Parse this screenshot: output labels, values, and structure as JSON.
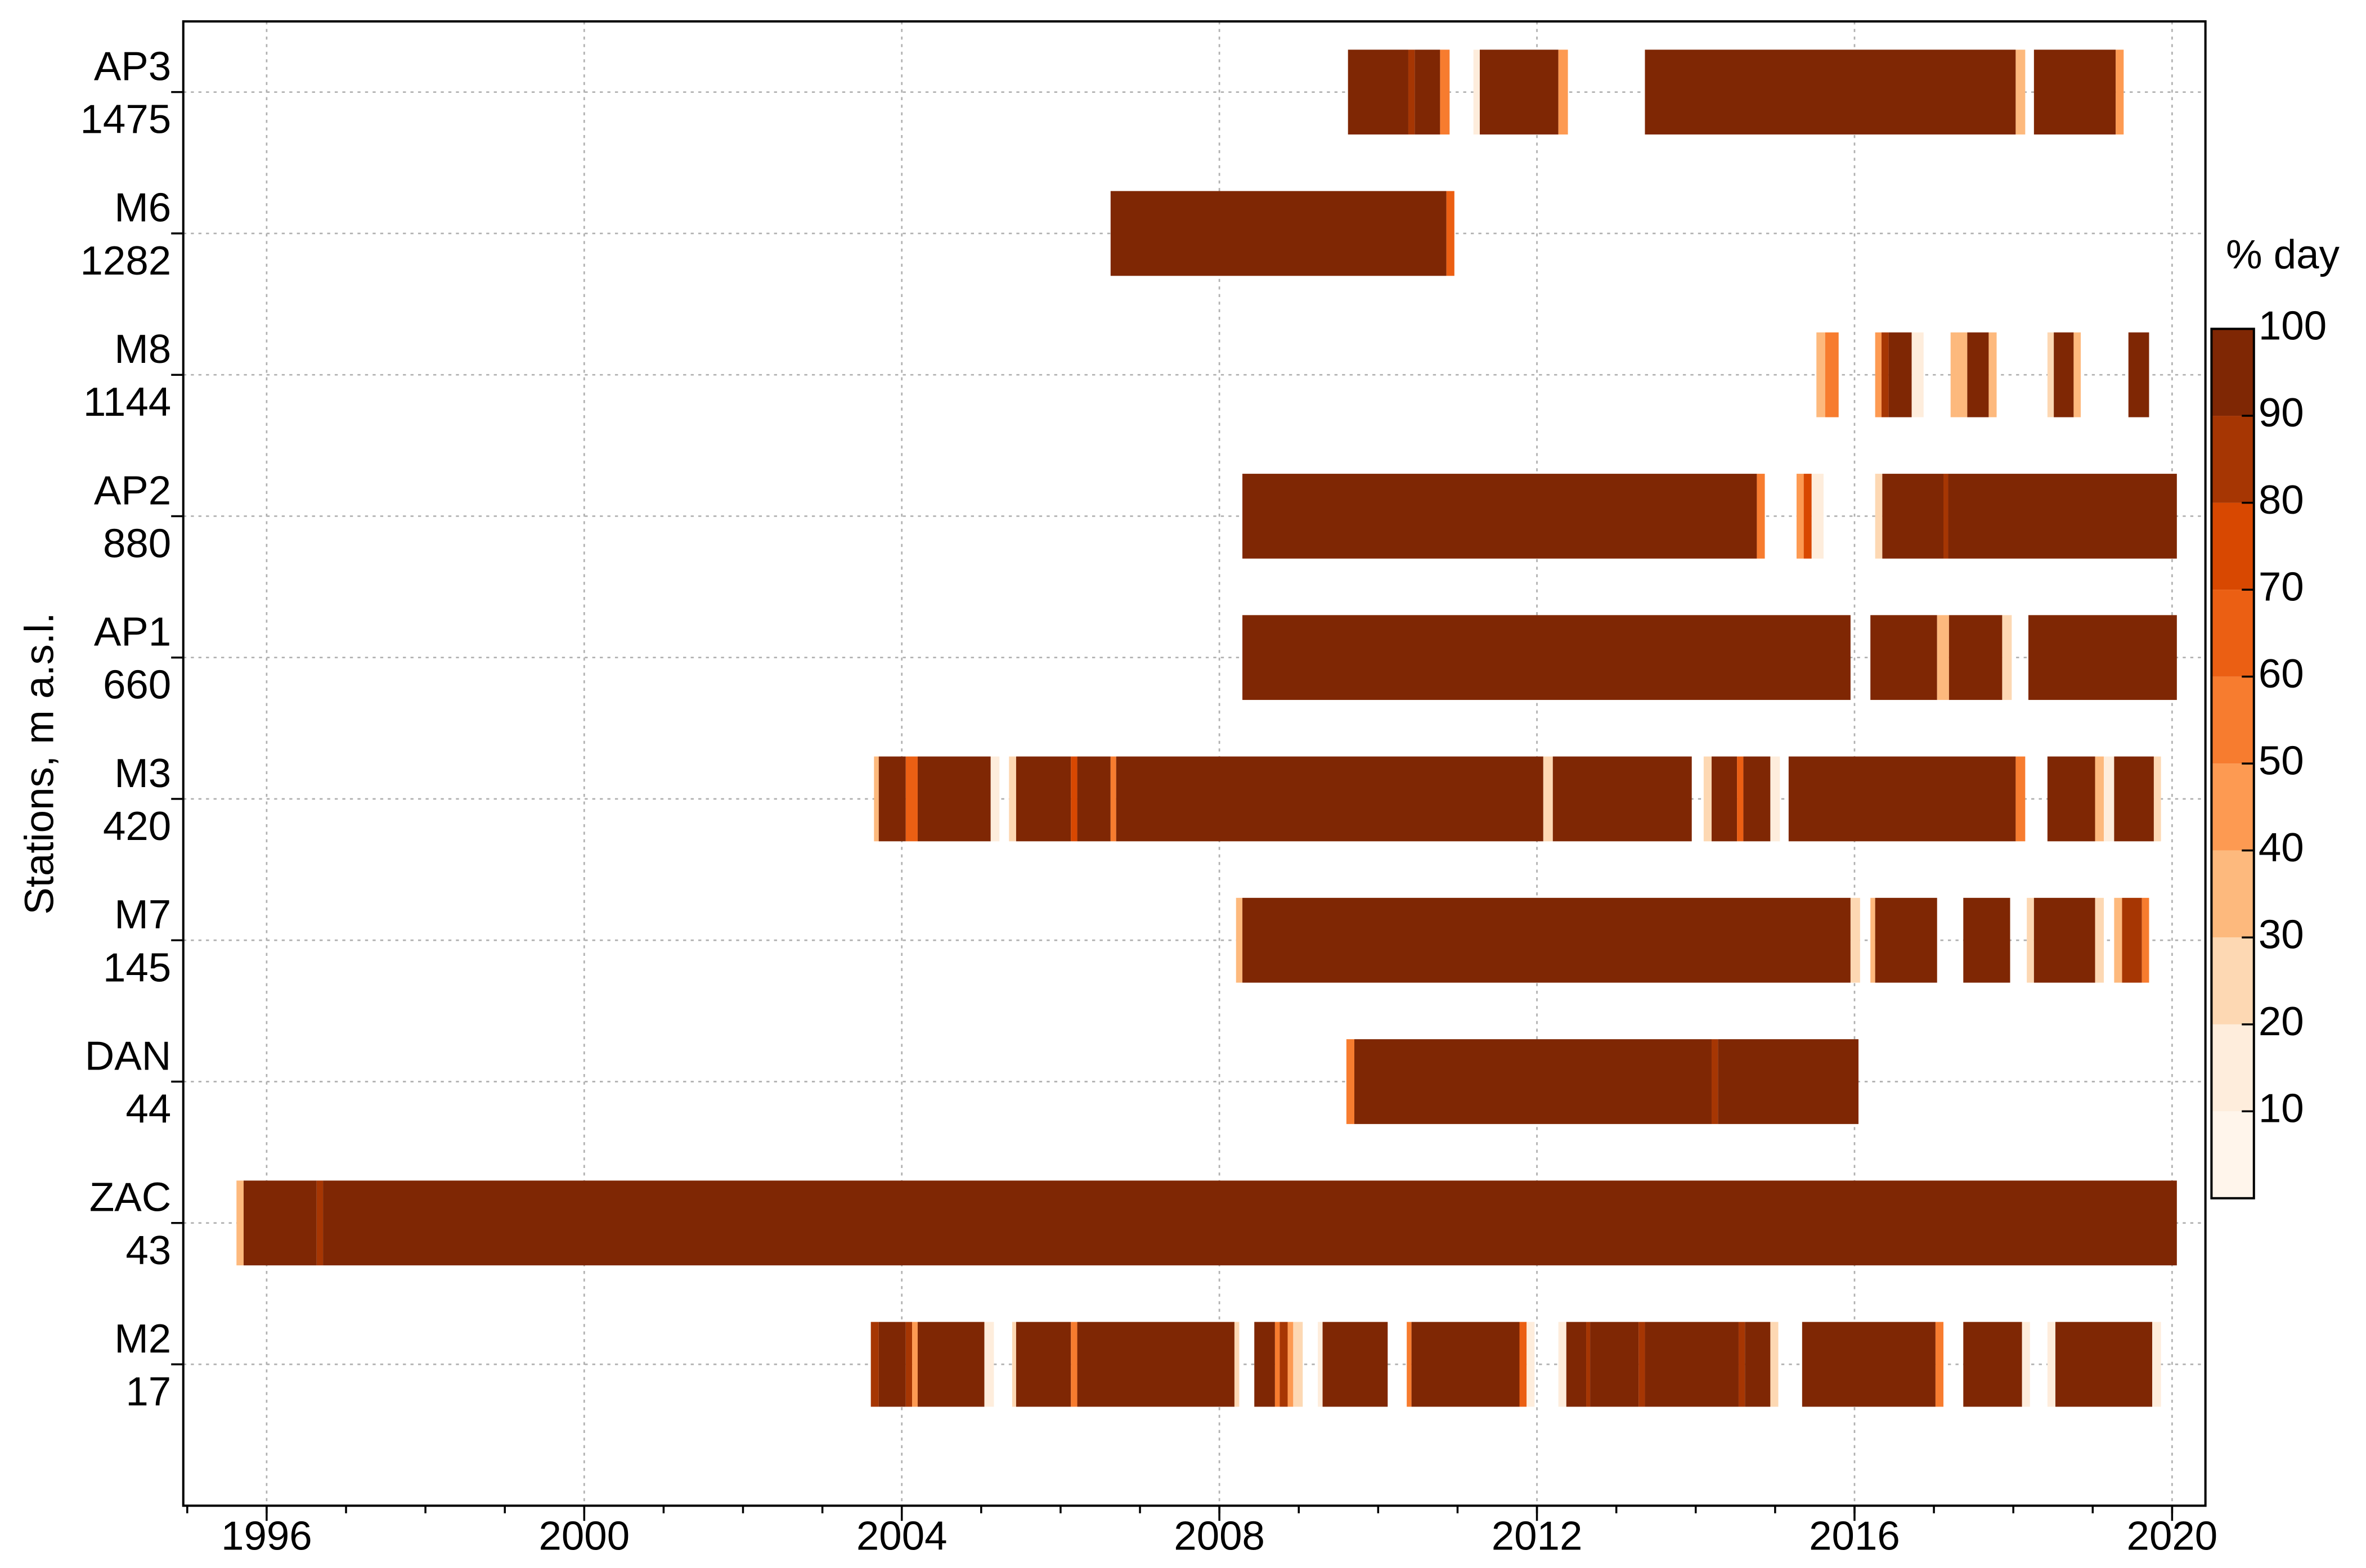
{
  "chart_data": {
    "type": "timeline",
    "ylabel": "Stations, m a.s.l.",
    "xlim": [
      1994.95,
      2020.42
    ],
    "xticks": [
      1996,
      2000,
      2004,
      2008,
      2012,
      2016,
      2020
    ],
    "xminorticks": [
      1995,
      1996,
      1997,
      1998,
      1999,
      2000,
      2001,
      2002,
      2003,
      2004,
      2005,
      2006,
      2007,
      2008,
      2009,
      2010,
      2011,
      2012,
      2013,
      2014,
      2015,
      2016,
      2017,
      2018,
      2019,
      2020
    ],
    "grid": true,
    "colorbar": {
      "title": "% day",
      "clim": [
        0,
        100
      ],
      "levels": [
        0,
        10,
        20,
        30,
        40,
        50,
        60,
        70,
        80,
        90,
        100
      ],
      "ticks": [
        10,
        20,
        30,
        40,
        50,
        60,
        70,
        80,
        90,
        100
      ],
      "colors": [
        "#fff5eb",
        "#feeddc",
        "#fdd8b3",
        "#fdb97d",
        "#fd9a52",
        "#f77c2f",
        "#eb5f13",
        "#d84801",
        "#a63603",
        "#7f2704"
      ]
    },
    "stations": [
      {
        "name": "AP3",
        "elevation": 1475,
        "segments": [
          {
            "from": 2009.62,
            "to": 2010.38,
            "value": 95
          },
          {
            "from": 2010.38,
            "to": 2010.46,
            "value": 85
          },
          {
            "from": 2010.46,
            "to": 2010.78,
            "value": 95
          },
          {
            "from": 2010.78,
            "to": 2010.9,
            "value": 55
          },
          {
            "from": 2011.2,
            "to": 2011.28,
            "value": 10
          },
          {
            "from": 2011.28,
            "to": 2012.27,
            "value": 95
          },
          {
            "from": 2012.27,
            "to": 2012.39,
            "value": 45
          },
          {
            "from": 2013.36,
            "to": 2018.03,
            "value": 95
          },
          {
            "from": 2018.03,
            "to": 2018.15,
            "value": 35
          },
          {
            "from": 2018.26,
            "to": 2019.29,
            "value": 95
          },
          {
            "from": 2019.29,
            "to": 2019.39,
            "value": 40
          }
        ]
      },
      {
        "name": "M6",
        "elevation": 1282,
        "segments": [
          {
            "from": 2006.63,
            "to": 2010.86,
            "value": 95
          },
          {
            "from": 2010.86,
            "to": 2010.96,
            "value": 65
          }
        ]
      },
      {
        "name": "M8",
        "elevation": 1144,
        "segments": [
          {
            "from": 2015.52,
            "to": 2015.63,
            "value": 35
          },
          {
            "from": 2015.63,
            "to": 2015.8,
            "value": 50
          },
          {
            "from": 2016.26,
            "to": 2016.34,
            "value": 45
          },
          {
            "from": 2016.34,
            "to": 2016.43,
            "value": 85
          },
          {
            "from": 2016.43,
            "to": 2016.72,
            "value": 95
          },
          {
            "from": 2016.72,
            "to": 2016.87,
            "value": 15
          },
          {
            "from": 2017.21,
            "to": 2017.29,
            "value": 30
          },
          {
            "from": 2017.29,
            "to": 2017.42,
            "value": 35
          },
          {
            "from": 2017.42,
            "to": 2017.69,
            "value": 95
          },
          {
            "from": 2017.69,
            "to": 2017.79,
            "value": 35
          },
          {
            "from": 2018.43,
            "to": 2018.51,
            "value": 25
          },
          {
            "from": 2018.51,
            "to": 2018.76,
            "value": 95
          },
          {
            "from": 2018.76,
            "to": 2018.85,
            "value": 30
          },
          {
            "from": 2019.45,
            "to": 2019.71,
            "value": 95
          }
        ]
      },
      {
        "name": "AP2",
        "elevation": 880,
        "segments": [
          {
            "from": 2008.29,
            "to": 2014.77,
            "value": 95
          },
          {
            "from": 2014.77,
            "to": 2014.87,
            "value": 55
          },
          {
            "from": 2015.27,
            "to": 2015.36,
            "value": 45
          },
          {
            "from": 2015.36,
            "to": 2015.46,
            "value": 75
          },
          {
            "from": 2015.46,
            "to": 2015.61,
            "value": 15
          },
          {
            "from": 2016.26,
            "to": 2016.35,
            "value": 25
          },
          {
            "from": 2016.35,
            "to": 2017.12,
            "value": 95
          },
          {
            "from": 2017.12,
            "to": 2017.18,
            "value": 85
          },
          {
            "from": 2017.18,
            "to": 2020.06,
            "value": 95
          }
        ]
      },
      {
        "name": "AP1",
        "elevation": 660,
        "segments": [
          {
            "from": 2008.29,
            "to": 2015.95,
            "value": 95
          },
          {
            "from": 2016.2,
            "to": 2017.04,
            "value": 95
          },
          {
            "from": 2017.04,
            "to": 2017.19,
            "value": 30
          },
          {
            "from": 2017.19,
            "to": 2017.86,
            "value": 95
          },
          {
            "from": 2017.86,
            "to": 2017.98,
            "value": 25
          },
          {
            "from": 2018.19,
            "to": 2020.06,
            "value": 95
          }
        ]
      },
      {
        "name": "M3",
        "elevation": 420,
        "segments": [
          {
            "from": 2003.65,
            "to": 2003.71,
            "value": 35
          },
          {
            "from": 2003.71,
            "to": 2004.05,
            "value": 95
          },
          {
            "from": 2004.05,
            "to": 2004.2,
            "value": 65
          },
          {
            "from": 2004.2,
            "to": 2005.12,
            "value": 95
          },
          {
            "from": 2005.12,
            "to": 2005.23,
            "value": 15
          },
          {
            "from": 2005.35,
            "to": 2005.44,
            "value": 20
          },
          {
            "from": 2005.44,
            "to": 2006.13,
            "value": 95
          },
          {
            "from": 2006.13,
            "to": 2006.21,
            "value": 70
          },
          {
            "from": 2006.21,
            "to": 2006.63,
            "value": 95
          },
          {
            "from": 2006.63,
            "to": 2006.7,
            "value": 50
          },
          {
            "from": 2006.7,
            "to": 2012.08,
            "value": 95
          },
          {
            "from": 2012.08,
            "to": 2012.2,
            "value": 20
          },
          {
            "from": 2012.2,
            "to": 2013.95,
            "value": 95
          },
          {
            "from": 2014.1,
            "to": 2014.2,
            "value": 20
          },
          {
            "from": 2014.2,
            "to": 2014.52,
            "value": 95
          },
          {
            "from": 2014.52,
            "to": 2014.6,
            "value": 65
          },
          {
            "from": 2014.6,
            "to": 2014.94,
            "value": 95
          },
          {
            "from": 2014.94,
            "to": 2015.06,
            "value": 15
          },
          {
            "from": 2015.17,
            "to": 2018.03,
            "value": 95
          },
          {
            "from": 2018.03,
            "to": 2018.15,
            "value": 55
          },
          {
            "from": 2018.43,
            "to": 2019.03,
            "value": 95
          },
          {
            "from": 2019.03,
            "to": 2019.14,
            "value": 30
          },
          {
            "from": 2019.14,
            "to": 2019.27,
            "value": 15
          },
          {
            "from": 2019.27,
            "to": 2019.77,
            "value": 95
          },
          {
            "from": 2019.77,
            "to": 2019.86,
            "value": 20
          }
        ]
      },
      {
        "name": "M7",
        "elevation": 145,
        "segments": [
          {
            "from": 2008.21,
            "to": 2008.29,
            "value": 35
          },
          {
            "from": 2008.29,
            "to": 2015.95,
            "value": 95
          },
          {
            "from": 2015.95,
            "to": 2016.07,
            "value": 20
          },
          {
            "from": 2016.2,
            "to": 2016.26,
            "value": 35
          },
          {
            "from": 2016.26,
            "to": 2017.04,
            "value": 95
          },
          {
            "from": 2017.37,
            "to": 2017.96,
            "value": 95
          },
          {
            "from": 2018.17,
            "to": 2018.26,
            "value": 20
          },
          {
            "from": 2018.26,
            "to": 2019.03,
            "value": 95
          },
          {
            "from": 2019.03,
            "to": 2019.14,
            "value": 20
          },
          {
            "from": 2019.27,
            "to": 2019.37,
            "value": 35
          },
          {
            "from": 2019.37,
            "to": 2019.62,
            "value": 85
          },
          {
            "from": 2019.62,
            "to": 2019.71,
            "value": 50
          }
        ]
      },
      {
        "name": "DAN",
        "elevation": 44,
        "segments": [
          {
            "from": 2009.6,
            "to": 2009.7,
            "value": 55
          },
          {
            "from": 2009.7,
            "to": 2014.2,
            "value": 95
          },
          {
            "from": 2014.2,
            "to": 2014.28,
            "value": 85
          },
          {
            "from": 2014.28,
            "to": 2016.05,
            "value": 95
          }
        ]
      },
      {
        "name": "ZAC",
        "elevation": 43,
        "segments": [
          {
            "from": 1995.62,
            "to": 1995.71,
            "value": 35
          },
          {
            "from": 1995.71,
            "to": 1996.63,
            "value": 95
          },
          {
            "from": 1996.63,
            "to": 1996.71,
            "value": 85
          },
          {
            "from": 1996.71,
            "to": 2020.06,
            "value": 95
          }
        ]
      },
      {
        "name": "M2",
        "elevation": 17,
        "segments": [
          {
            "from": 2003.61,
            "to": 2003.71,
            "value": 85
          },
          {
            "from": 2003.71,
            "to": 2004.05,
            "value": 95
          },
          {
            "from": 2004.05,
            "to": 2004.13,
            "value": 85
          },
          {
            "from": 2004.13,
            "to": 2004.2,
            "value": 45
          },
          {
            "from": 2004.2,
            "to": 2005.04,
            "value": 95
          },
          {
            "from": 2005.04,
            "to": 2005.16,
            "value": 15
          },
          {
            "from": 2005.39,
            "to": 2005.44,
            "value": 25
          },
          {
            "from": 2005.44,
            "to": 2006.13,
            "value": 95
          },
          {
            "from": 2006.13,
            "to": 2006.21,
            "value": 55
          },
          {
            "from": 2006.21,
            "to": 2008.19,
            "value": 95
          },
          {
            "from": 2008.19,
            "to": 2008.25,
            "value": 20
          },
          {
            "from": 2008.44,
            "to": 2008.7,
            "value": 95
          },
          {
            "from": 2008.7,
            "to": 2008.76,
            "value": 50
          },
          {
            "from": 2008.76,
            "to": 2008.86,
            "value": 85
          },
          {
            "from": 2008.86,
            "to": 2008.93,
            "value": 45
          },
          {
            "from": 2008.93,
            "to": 2009.05,
            "value": 20
          },
          {
            "from": 2009.24,
            "to": 2009.3,
            "value": 15
          },
          {
            "from": 2009.3,
            "to": 2010.12,
            "value": 95
          },
          {
            "from": 2010.36,
            "to": 2010.42,
            "value": 50
          },
          {
            "from": 2010.42,
            "to": 2011.78,
            "value": 95
          },
          {
            "from": 2011.78,
            "to": 2011.87,
            "value": 65
          },
          {
            "from": 2011.87,
            "to": 2011.97,
            "value": 15
          },
          {
            "from": 2012.27,
            "to": 2012.37,
            "value": 10
          },
          {
            "from": 2012.37,
            "to": 2012.62,
            "value": 95
          },
          {
            "from": 2012.62,
            "to": 2012.67,
            "value": 85
          },
          {
            "from": 2012.67,
            "to": 2013.28,
            "value": 95
          },
          {
            "from": 2013.28,
            "to": 2013.36,
            "value": 85
          },
          {
            "from": 2013.36,
            "to": 2014.54,
            "value": 95
          },
          {
            "from": 2014.54,
            "to": 2014.62,
            "value": 80
          },
          {
            "from": 2014.62,
            "to": 2014.94,
            "value": 95
          },
          {
            "from": 2014.94,
            "to": 2015.04,
            "value": 20
          },
          {
            "from": 2015.34,
            "to": 2017.02,
            "value": 95
          },
          {
            "from": 2017.02,
            "to": 2017.12,
            "value": 55
          },
          {
            "from": 2017.37,
            "to": 2018.11,
            "value": 95
          },
          {
            "from": 2018.11,
            "to": 2018.21,
            "value": 15
          },
          {
            "from": 2018.43,
            "to": 2018.53,
            "value": 15
          },
          {
            "from": 2018.53,
            "to": 2019.75,
            "value": 95
          },
          {
            "from": 2019.75,
            "to": 2019.86,
            "value": 15
          }
        ]
      }
    ]
  }
}
